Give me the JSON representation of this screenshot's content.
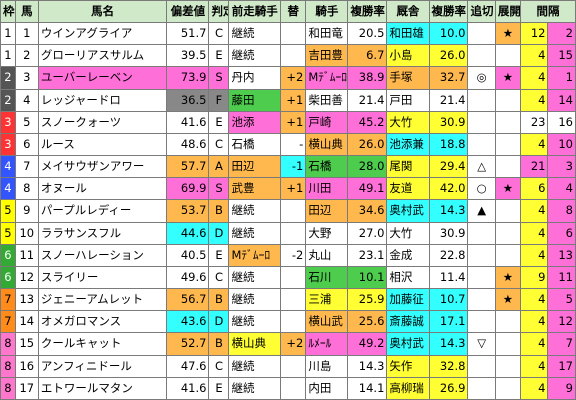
{
  "headers": [
    "枠",
    "馬",
    "馬名",
    "偏差値",
    "判定",
    "前走騎手",
    "替",
    "騎手",
    "複勝率",
    "厩舎",
    "複勝率",
    "追切",
    "展開",
    "間隔"
  ],
  "colors": {
    "header_bg": "#cfe9c9",
    "pink": "#ff6fd8",
    "yellow": "#ffff33",
    "cyan": "#33ffff",
    "orange": "#ffb84d",
    "green": "#4dcc4d",
    "waku": [
      "#ffffff",
      "#000000",
      "#ff3333",
      "#3355ff",
      "#ffff00",
      "#33aa33",
      "#ff8c1a",
      "#ff77cc"
    ]
  },
  "rows": [
    {
      "waku": "1",
      "waku_c": "#ffffff",
      "waku_t": "#000000",
      "num": "1",
      "name": "ウインアグライア",
      "name_bg": "#ffffff",
      "dev": "51.7",
      "grade": "C",
      "dev_bg": "#ffffff",
      "prev": "継続",
      "prev_bg": "#ffffff",
      "swap": "",
      "swap_bg": "#ffffff",
      "jockey": "和田竜",
      "jockey_bg": "#ffffff",
      "jrate": "20.5",
      "jrate_bg": "#ffffff",
      "stable": "和田雄",
      "stable_bg": "#33ffff",
      "srate": "10.0",
      "srate_bg": "#33ffff",
      "oikiri": "",
      "tenkai": "★",
      "tenkai_bg": "#ffb84d",
      "gap": "12",
      "gap_bg": "#ffff33",
      "gnum": "2",
      "gnum_bg": "#ff6fd8"
    },
    {
      "waku": "1",
      "waku_c": "#ffffff",
      "waku_t": "#000000",
      "num": "2",
      "name": "グローリアスサルム",
      "name_bg": "#ffffff",
      "dev": "39.5",
      "grade": "E",
      "dev_bg": "#ffffff",
      "prev": "継続",
      "prev_bg": "#ffffff",
      "swap": "",
      "swap_bg": "#ffffff",
      "jockey": "吉田豊",
      "jockey_bg": "#ffb84d",
      "jrate": "6.7",
      "jrate_bg": "#ffb84d",
      "stable": "小島",
      "stable_bg": "#ffff33",
      "srate": "26.0",
      "srate_bg": "#ffff33",
      "oikiri": "",
      "tenkai": "",
      "tenkai_bg": "#ffffff",
      "gap": "4",
      "gap_bg": "#ffff33",
      "gnum": "15",
      "gnum_bg": "#ff6fd8"
    },
    {
      "waku": "2",
      "waku_c": "#555555",
      "waku_t": "#ffffff",
      "num": "3",
      "name": "ユーバーレーベン",
      "name_bg": "#ff6fd8",
      "dev": "73.9",
      "grade": "S",
      "dev_bg": "#ff6fd8",
      "prev": "丹内",
      "prev_bg": "#ffffff",
      "swap": "+2",
      "swap_bg": "#ffb84d",
      "jockey": "Mﾃﾞﾑｰﾛ",
      "jockey_bg": "#ff6fd8",
      "jrate": "38.9",
      "jrate_bg": "#ff6fd8",
      "stable": "手塚",
      "stable_bg": "#ffb84d",
      "srate": "32.7",
      "srate_bg": "#ffb84d",
      "oikiri": "◎",
      "tenkai": "★",
      "tenkai_bg": "#ff6fd8",
      "gap": "4",
      "gap_bg": "#ffff33",
      "gnum": "1",
      "gnum_bg": "#ff6fd8"
    },
    {
      "waku": "2",
      "waku_c": "#555555",
      "waku_t": "#ffffff",
      "num": "4",
      "name": "レッジャードロ",
      "name_bg": "#ffffff",
      "dev": "36.5",
      "grade": "F",
      "dev_bg": "#888888",
      "prev": "藤田",
      "prev_bg": "#4dcc4d",
      "swap": "+1",
      "swap_bg": "#ffb84d",
      "jockey": "柴田善",
      "jockey_bg": "#ffffff",
      "jrate": "21.4",
      "jrate_bg": "#ffffff",
      "stable": "戸田",
      "stable_bg": "#ffffff",
      "srate": "21.4",
      "srate_bg": "#ffffff",
      "oikiri": "",
      "tenkai": "",
      "tenkai_bg": "#ffffff",
      "gap": "4",
      "gap_bg": "#ffff33",
      "gnum": "14",
      "gnum_bg": "#ff6fd8"
    },
    {
      "waku": "3",
      "waku_c": "#ff3333",
      "waku_t": "#ffffff",
      "num": "5",
      "name": "スノークォーツ",
      "name_bg": "#ffffff",
      "dev": "41.6",
      "grade": "E",
      "dev_bg": "#ffffff",
      "prev": "池添",
      "prev_bg": "#ff6fd8",
      "swap": "+1",
      "swap_bg": "#ffb84d",
      "jockey": "戸崎",
      "jockey_bg": "#ff6fd8",
      "jrate": "45.2",
      "jrate_bg": "#ff6fd8",
      "stable": "大竹",
      "stable_bg": "#ffff33",
      "srate": "30.9",
      "srate_bg": "#ffff33",
      "oikiri": "",
      "tenkai": "",
      "tenkai_bg": "#ffffff",
      "gap": "23",
      "gap_bg": "#ffffff",
      "gnum": "16",
      "gnum_bg": "#ffffff"
    },
    {
      "waku": "3",
      "waku_c": "#ff3333",
      "waku_t": "#ffffff",
      "num": "6",
      "name": "ルース",
      "name_bg": "#ffffff",
      "dev": "48.6",
      "grade": "C",
      "dev_bg": "#ffffff",
      "prev": "石橋",
      "prev_bg": "#ffffff",
      "swap": "-",
      "swap_bg": "#ffffff",
      "jockey": "横山典",
      "jockey_bg": "#ffb84d",
      "jrate": "26.0",
      "jrate_bg": "#ffb84d",
      "stable": "池添兼",
      "stable_bg": "#33ffff",
      "srate": "18.8",
      "srate_bg": "#33ffff",
      "oikiri": "",
      "tenkai": "",
      "tenkai_bg": "#ffffff",
      "gap": "4",
      "gap_bg": "#ffff33",
      "gnum": "10",
      "gnum_bg": "#ff6fd8"
    },
    {
      "waku": "4",
      "waku_c": "#3355ff",
      "waku_t": "#ffffff",
      "num": "7",
      "name": "メイサウザンアワー",
      "name_bg": "#ffffff",
      "dev": "57.7",
      "grade": "A",
      "dev_bg": "#ffb84d",
      "prev": "田辺",
      "prev_bg": "#ffb84d",
      "swap": "-1",
      "swap_bg": "#33ffff",
      "jockey": "石橋",
      "jockey_bg": "#4dcc4d",
      "jrate": "28.0",
      "jrate_bg": "#4dcc4d",
      "stable": "尾関",
      "stable_bg": "#ffff33",
      "srate": "29.4",
      "srate_bg": "#ffff33",
      "oikiri": "△",
      "tenkai": "",
      "tenkai_bg": "#ffffff",
      "gap": "21",
      "gap_bg": "#ff6fd8",
      "gnum": "3",
      "gnum_bg": "#ff6fd8"
    },
    {
      "waku": "4",
      "waku_c": "#3355ff",
      "waku_t": "#ffffff",
      "num": "8",
      "name": "オヌール",
      "name_bg": "#ffffff",
      "dev": "69.9",
      "grade": "S",
      "dev_bg": "#ff6fd8",
      "prev": "武豊",
      "prev_bg": "#ffb84d",
      "swap": "+1",
      "swap_bg": "#ffb84d",
      "jockey": "川田",
      "jockey_bg": "#ff6fd8",
      "jrate": "49.1",
      "jrate_bg": "#ff6fd8",
      "stable": "友道",
      "stable_bg": "#ffff33",
      "srate": "42.0",
      "srate_bg": "#ffff33",
      "oikiri": "○",
      "tenkai": "★",
      "tenkai_bg": "#ff6fd8",
      "gap": "6",
      "gap_bg": "#ffff33",
      "gnum": "4",
      "gnum_bg": "#ff6fd8"
    },
    {
      "waku": "5",
      "waku_c": "#ffff00",
      "waku_t": "#000000",
      "num": "9",
      "name": "パープルレディー",
      "name_bg": "#ffffff",
      "dev": "53.7",
      "grade": "B",
      "dev_bg": "#ffb84d",
      "prev": "継続",
      "prev_bg": "#ffffff",
      "swap": "",
      "swap_bg": "#ffffff",
      "jockey": "田辺",
      "jockey_bg": "#ffb84d",
      "jrate": "34.6",
      "jrate_bg": "#ffb84d",
      "stable": "奥村武",
      "stable_bg": "#33ffff",
      "srate": "14.3",
      "srate_bg": "#33ffff",
      "oikiri": "▲",
      "tenkai": "",
      "tenkai_bg": "#ffffff",
      "gap": "4",
      "gap_bg": "#ffff33",
      "gnum": "8",
      "gnum_bg": "#ff6fd8"
    },
    {
      "waku": "5",
      "waku_c": "#ffff00",
      "waku_t": "#000000",
      "num": "10",
      "name": "ララサンスフル",
      "name_bg": "#ffffff",
      "dev": "44.6",
      "grade": "D",
      "dev_bg": "#33ffff",
      "prev": "継続",
      "prev_bg": "#ffffff",
      "swap": "",
      "swap_bg": "#ffffff",
      "jockey": "大野",
      "jockey_bg": "#ffffff",
      "jrate": "27.0",
      "jrate_bg": "#ffffff",
      "stable": "大竹",
      "stable_bg": "#ffffff",
      "srate": "30.9",
      "srate_bg": "#ffffff",
      "oikiri": "",
      "tenkai": "",
      "tenkai_bg": "#ffffff",
      "gap": "4",
      "gap_bg": "#ffff33",
      "gnum": "6",
      "gnum_bg": "#ff6fd8"
    },
    {
      "waku": "6",
      "waku_c": "#33aa33",
      "waku_t": "#ffffff",
      "num": "11",
      "name": "スノーハレーション",
      "name_bg": "#ffffff",
      "dev": "40.5",
      "grade": "E",
      "dev_bg": "#ffffff",
      "prev": "Mﾃﾞﾑｰﾛ",
      "prev_bg": "#ffb84d",
      "swap": "-2",
      "swap_bg": "#ffffff",
      "jockey": "丸山",
      "jockey_bg": "#ffffff",
      "jrate": "23.1",
      "jrate_bg": "#ffffff",
      "stable": "金成",
      "stable_bg": "#ffffff",
      "srate": "22.8",
      "srate_bg": "#ffffff",
      "oikiri": "",
      "tenkai": "",
      "tenkai_bg": "#ffffff",
      "gap": "4",
      "gap_bg": "#ffff33",
      "gnum": "13",
      "gnum_bg": "#ff6fd8"
    },
    {
      "waku": "6",
      "waku_c": "#33aa33",
      "waku_t": "#ffffff",
      "num": "12",
      "name": "スライリー",
      "name_bg": "#ffffff",
      "dev": "49.6",
      "grade": "C",
      "dev_bg": "#ffffff",
      "prev": "継続",
      "prev_bg": "#ffffff",
      "swap": "",
      "swap_bg": "#ffffff",
      "jockey": "石川",
      "jockey_bg": "#4dcc4d",
      "jrate": "10.1",
      "jrate_bg": "#4dcc4d",
      "stable": "相沢",
      "stable_bg": "#ffffff",
      "srate": "11.4",
      "srate_bg": "#ffffff",
      "oikiri": "",
      "tenkai": "★",
      "tenkai_bg": "#ffb84d",
      "gap": "9",
      "gap_bg": "#ffff33",
      "gnum": "11",
      "gnum_bg": "#ff6fd8"
    },
    {
      "waku": "7",
      "waku_c": "#ff8c1a",
      "waku_t": "#000000",
      "num": "13",
      "name": "ジェニーアムレット",
      "name_bg": "#ffffff",
      "dev": "56.7",
      "grade": "B",
      "dev_bg": "#ffb84d",
      "prev": "継続",
      "prev_bg": "#ffffff",
      "swap": "",
      "swap_bg": "#ffffff",
      "jockey": "三浦",
      "jockey_bg": "#ffff33",
      "jrate": "25.9",
      "jrate_bg": "#ffff33",
      "stable": "加藤征",
      "stable_bg": "#33ffff",
      "srate": "10.7",
      "srate_bg": "#33ffff",
      "oikiri": "",
      "tenkai": "★",
      "tenkai_bg": "#ffb84d",
      "gap": "4",
      "gap_bg": "#ffff33",
      "gnum": "5",
      "gnum_bg": "#ff6fd8"
    },
    {
      "waku": "7",
      "waku_c": "#ff8c1a",
      "waku_t": "#000000",
      "num": "14",
      "name": "オメガロマンス",
      "name_bg": "#ffffff",
      "dev": "43.6",
      "grade": "D",
      "dev_bg": "#33ffff",
      "prev": "継続",
      "prev_bg": "#ffffff",
      "swap": "",
      "swap_bg": "#ffffff",
      "jockey": "横山武",
      "jockey_bg": "#ffb84d",
      "jrate": "25.6",
      "jrate_bg": "#ffb84d",
      "stable": "斎藤誠",
      "stable_bg": "#33ffff",
      "srate": "17.1",
      "srate_bg": "#33ffff",
      "oikiri": "",
      "tenkai": "",
      "tenkai_bg": "#ffffff",
      "gap": "4",
      "gap_bg": "#ffff33",
      "gnum": "12",
      "gnum_bg": "#ff6fd8"
    },
    {
      "waku": "8",
      "waku_c": "#ff77cc",
      "waku_t": "#000000",
      "num": "15",
      "name": "クールキャット",
      "name_bg": "#ffffff",
      "dev": "52.7",
      "grade": "B",
      "dev_bg": "#ffb84d",
      "prev": "横山典",
      "prev_bg": "#ffff33",
      "swap": "+2",
      "swap_bg": "#ffb84d",
      "jockey": "ﾙﾒｰﾙ",
      "jockey_bg": "#ff6fd8",
      "jrate": "49.2",
      "jrate_bg": "#ff6fd8",
      "stable": "奥村武",
      "stable_bg": "#33ffff",
      "srate": "14.3",
      "srate_bg": "#33ffff",
      "oikiri": "▽",
      "tenkai": "",
      "tenkai_bg": "#ffffff",
      "gap": "4",
      "gap_bg": "#ffff33",
      "gnum": "7",
      "gnum_bg": "#ff6fd8"
    },
    {
      "waku": "8",
      "waku_c": "#ff77cc",
      "waku_t": "#000000",
      "num": "16",
      "name": "アンフィニドール",
      "name_bg": "#ffffff",
      "dev": "47.6",
      "grade": "C",
      "dev_bg": "#ffffff",
      "prev": "継続",
      "prev_bg": "#ffffff",
      "swap": "",
      "swap_bg": "#ffffff",
      "jockey": "川島",
      "jockey_bg": "#ffffff",
      "jrate": "14.3",
      "jrate_bg": "#ffffff",
      "stable": "矢作",
      "stable_bg": "#ffff33",
      "srate": "32.8",
      "srate_bg": "#ffff33",
      "oikiri": "",
      "tenkai": "",
      "tenkai_bg": "#ffffff",
      "gap": "4",
      "gap_bg": "#ffff33",
      "gnum": "17",
      "gnum_bg": "#ff6fd8"
    },
    {
      "waku": "8",
      "waku_c": "#ff77cc",
      "waku_t": "#000000",
      "num": "17",
      "name": "エトワールマタン",
      "name_bg": "#ffffff",
      "dev": "41.6",
      "grade": "E",
      "dev_bg": "#ffffff",
      "prev": "継続",
      "prev_bg": "#ffffff",
      "swap": "",
      "swap_bg": "#ffffff",
      "jockey": "内田",
      "jockey_bg": "#ffffff",
      "jrate": "14.1",
      "jrate_bg": "#ffffff",
      "stable": "高柳瑞",
      "stable_bg": "#ffff33",
      "srate": "26.9",
      "srate_bg": "#ffff33",
      "oikiri": "",
      "tenkai": "",
      "tenkai_bg": "#ffffff",
      "gap": "4",
      "gap_bg": "#ffff33",
      "gnum": "9",
      "gnum_bg": "#ff6fd8"
    }
  ]
}
